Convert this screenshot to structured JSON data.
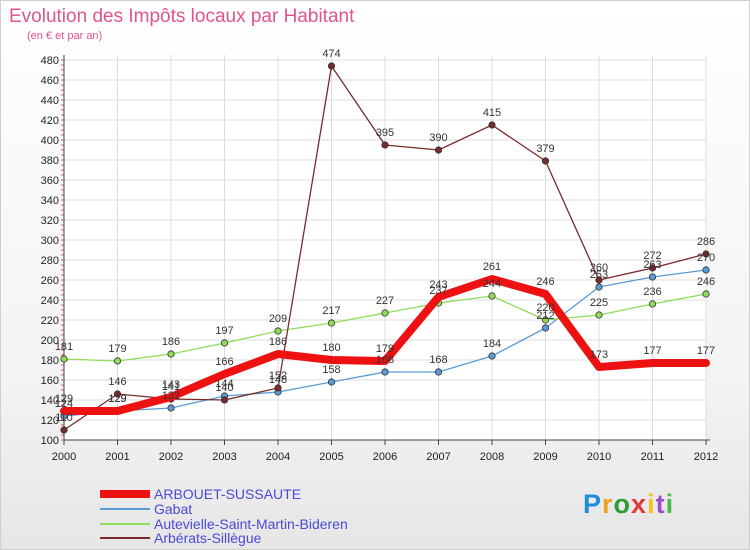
{
  "title": "Evolution des Impôts locaux par Habitant",
  "subtitle": "(en € et par an)",
  "logo": {
    "letters": [
      "P",
      "r",
      "o",
      "x",
      "i",
      "t",
      "i"
    ],
    "colors": [
      "#1e8fd6",
      "#f0a21c",
      "#2e9b3a",
      "#e03a3a",
      "#f2c315",
      "#9b4fc7",
      "#4ab84a"
    ]
  },
  "chart_data": {
    "type": "line",
    "x": [
      "2000",
      "2001",
      "2002",
      "2003",
      "2004",
      "2005",
      "2006",
      "2007",
      "2008",
      "2009",
      "2010",
      "2011",
      "2012"
    ],
    "yticks": [
      "100",
      "120",
      "140",
      "160",
      "180",
      "200",
      "220",
      "240",
      "260",
      "280",
      "300",
      "320",
      "340",
      "360",
      "380",
      "400",
      "420",
      "440",
      "460",
      "480"
    ],
    "ylim": [
      100,
      480
    ],
    "grid": true,
    "legend_position": "bottom-left",
    "series": [
      {
        "name": "ARBOUET-SUSSAUTE",
        "color": "#ee1111",
        "values": [
          129,
          129,
          143,
          166,
          186,
          180,
          179,
          243,
          261,
          246,
          173,
          177,
          177
        ],
        "labels": [
          "129",
          "129",
          "143",
          "166",
          "186",
          "180",
          "179",
          "243",
          "261",
          "246",
          "173",
          "177",
          "177"
        ]
      },
      {
        "name": "Gabat",
        "color": "#5a9bd5",
        "values": [
          124,
          129,
          132,
          144,
          148,
          158,
          168,
          168,
          184,
          212,
          253,
          263,
          270
        ],
        "labels": [
          "124",
          "129",
          "132",
          "144",
          "148",
          "158",
          "168",
          "168",
          "184",
          "212",
          "253",
          "263",
          "270"
        ]
      },
      {
        "name": "Autevielle-Saint-Martin-Bideren",
        "color": "#8fdc5a",
        "values": [
          181,
          179,
          186,
          197,
          209,
          217,
          227,
          237,
          244,
          220,
          225,
          236,
          246
        ],
        "labels": [
          "181",
          "179",
          "186",
          "197",
          "209",
          "217",
          "227",
          "237",
          "244",
          "220",
          "225",
          "236",
          "246"
        ]
      },
      {
        "name": "Arbérats-Sillègue",
        "color": "#7a2a2a",
        "values": [
          110,
          146,
          141,
          140,
          152,
          474,
          395,
          390,
          415,
          379,
          260,
          272,
          286
        ],
        "labels": [
          "110",
          "146",
          "141",
          "140",
          "152",
          "474",
          "395",
          "390",
          "415",
          "379",
          "260",
          "272",
          "286"
        ]
      }
    ]
  }
}
